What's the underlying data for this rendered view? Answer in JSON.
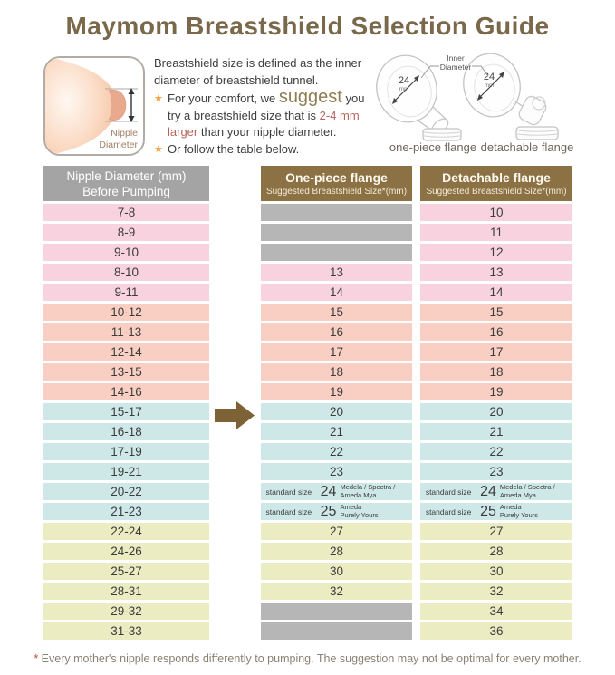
{
  "title": "Maymom Breastshield Selection Guide",
  "colors": {
    "pink": "#f8d3df",
    "peach": "#f8cfc2",
    "cyan": "#cee8e7",
    "yellow": "#ebecc2",
    "empty": "#b6b6b6",
    "header_gray": "#a4a4a4",
    "header_brown": "#8b7144",
    "arrow": "#7c6235",
    "title_text": "#7a684a"
  },
  "intro": {
    "definition": "Breastshield size is defined as the inner diameter of breastshield tunnel.",
    "bullet1_star": "★",
    "bullet1_segments": [
      {
        "t": "For your comfort, we ",
        "s": "n"
      },
      {
        "t": "suggest",
        "s": "big"
      },
      {
        "t": " you\ntry a breastshield size that is ",
        "s": "n"
      },
      {
        "t": "2-4 mm\nlarger",
        "s": "red"
      },
      {
        "t": " than your nipple diameter.",
        "s": "n"
      }
    ],
    "bullet2_star": "★",
    "bullet2_text": "Or follow the table below."
  },
  "breast_diagram": {
    "label_line1": "Nipple",
    "label_line2": "Diameter"
  },
  "flange_diagram": {
    "inner_diameter_line1": "Inner",
    "inner_diameter_line2": "Diameter",
    "size": "24",
    "unit": "mm",
    "size2": "24",
    "unit2": "mm",
    "one_piece_label": "one-piece flange",
    "detachable_label": "detachable flange"
  },
  "table": {
    "col1_header": {
      "line1": "Nipple Diameter (mm)",
      "line2": "Before Pumping"
    },
    "col2_header": {
      "title": "One-piece flange",
      "subtitle": "Suggested Breastshield Size*(mm)"
    },
    "col3_header": {
      "title": "Detachable flange",
      "subtitle": "Suggested Breastshield Size*(mm)"
    },
    "rows": [
      {
        "range": "7-8",
        "one": null,
        "det": "10",
        "color": "pink"
      },
      {
        "range": "8-9",
        "one": null,
        "det": "11",
        "color": "pink"
      },
      {
        "range": "9-10",
        "one": null,
        "det": "12",
        "color": "pink"
      },
      {
        "range": "8-10",
        "one": "13",
        "det": "13",
        "color": "pink"
      },
      {
        "range": "9-11",
        "one": "14",
        "det": "14",
        "color": "pink"
      },
      {
        "range": "10-12",
        "one": "15",
        "det": "15",
        "color": "peach"
      },
      {
        "range": "11-13",
        "one": "16",
        "det": "16",
        "color": "peach"
      },
      {
        "range": "12-14",
        "one": "17",
        "det": "17",
        "color": "peach"
      },
      {
        "range": "13-15",
        "one": "18",
        "det": "18",
        "color": "peach"
      },
      {
        "range": "14-16",
        "one": "19",
        "det": "19",
        "color": "peach"
      },
      {
        "range": "15-17",
        "one": "20",
        "det": "20",
        "color": "cyan"
      },
      {
        "range": "16-18",
        "one": "21",
        "det": "21",
        "color": "cyan"
      },
      {
        "range": "17-19",
        "one": "22",
        "det": "22",
        "color": "cyan"
      },
      {
        "range": "19-21",
        "one": "23",
        "det": "23",
        "color": "cyan"
      },
      {
        "range": "20-22",
        "one": "24",
        "det": "24",
        "color": "cyan",
        "standard": {
          "label": "standard size",
          "brand_line1": "Medela / Spectra /",
          "brand_line2": "Ameda Mya"
        }
      },
      {
        "range": "21-23",
        "one": "25",
        "det": "25",
        "color": "cyan",
        "standard": {
          "label": "standard size",
          "brand_line1": "Ameda",
          "brand_line2": "Purely Yours"
        }
      },
      {
        "range": "22-24",
        "one": "27",
        "det": "27",
        "color": "yellow"
      },
      {
        "range": "24-26",
        "one": "28",
        "det": "28",
        "color": "yellow"
      },
      {
        "range": "25-27",
        "one": "30",
        "det": "30",
        "color": "yellow"
      },
      {
        "range": "28-31",
        "one": "32",
        "det": "32",
        "color": "yellow"
      },
      {
        "range": "29-32",
        "one": null,
        "det": "34",
        "color": "yellow"
      },
      {
        "range": "31-33",
        "one": null,
        "det": "36",
        "color": "yellow"
      }
    ]
  },
  "chart_data": {
    "type": "table",
    "title": "Maymom Breastshield Selection Guide",
    "columns": [
      "Nipple Diameter (mm) Before Pumping",
      "One-piece flange Suggested Breastshield Size*(mm)",
      "Detachable flange Suggested Breastshield Size*(mm)"
    ],
    "rows": [
      [
        "7-8",
        null,
        "10"
      ],
      [
        "8-9",
        null,
        "11"
      ],
      [
        "9-10",
        null,
        "12"
      ],
      [
        "8-10",
        "13",
        "13"
      ],
      [
        "9-11",
        "14",
        "14"
      ],
      [
        "10-12",
        "15",
        "15"
      ],
      [
        "11-13",
        "16",
        "16"
      ],
      [
        "12-14",
        "17",
        "17"
      ],
      [
        "13-15",
        "18",
        "18"
      ],
      [
        "14-16",
        "19",
        "19"
      ],
      [
        "15-17",
        "20",
        "20"
      ],
      [
        "16-18",
        "21",
        "21"
      ],
      [
        "17-19",
        "22",
        "22"
      ],
      [
        "19-21",
        "23",
        "23"
      ],
      [
        "20-22",
        "24",
        "24"
      ],
      [
        "21-23",
        "25",
        "25"
      ],
      [
        "22-24",
        "27",
        "27"
      ],
      [
        "24-26",
        "28",
        "28"
      ],
      [
        "25-27",
        "30",
        "30"
      ],
      [
        "28-31",
        "32",
        "32"
      ],
      [
        "29-32",
        null,
        "34"
      ],
      [
        "31-33",
        null,
        "36"
      ]
    ],
    "annotations": [
      "size 24 = standard size (Medela / Spectra / Ameda Mya)",
      "size 25 = standard size (Ameda Purely Yours)"
    ]
  },
  "footer": {
    "asterisk": "*",
    "text": " Every mother's nipple responds differently to pumping. The suggestion may not be optimal for every mother."
  }
}
